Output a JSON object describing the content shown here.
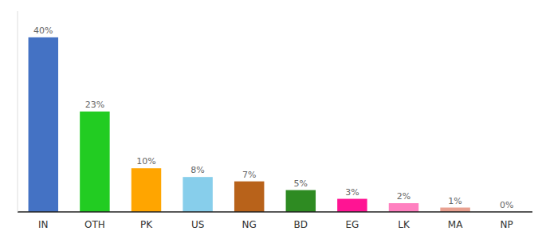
{
  "chart_data": {
    "type": "bar",
    "categories": [
      "IN",
      "OTH",
      "PK",
      "US",
      "NG",
      "BD",
      "EG",
      "LK",
      "MA",
      "NP"
    ],
    "values": [
      40,
      23,
      10,
      8,
      7,
      5,
      3,
      2,
      1,
      0
    ],
    "value_labels": [
      "40%",
      "23%",
      "10%",
      "8%",
      "7%",
      "5%",
      "3%",
      "2%",
      "1%",
      "0%"
    ],
    "colors": [
      "#4472c4",
      "#22cc22",
      "#ffa500",
      "#87ceeb",
      "#b8621a",
      "#2e8b22",
      "#ff1493",
      "#ff80c0",
      "#e8a090",
      "#ff80c0"
    ],
    "ylim": [
      0,
      46
    ],
    "data_labels": true,
    "tick_labels": "x",
    "grid": false
  }
}
